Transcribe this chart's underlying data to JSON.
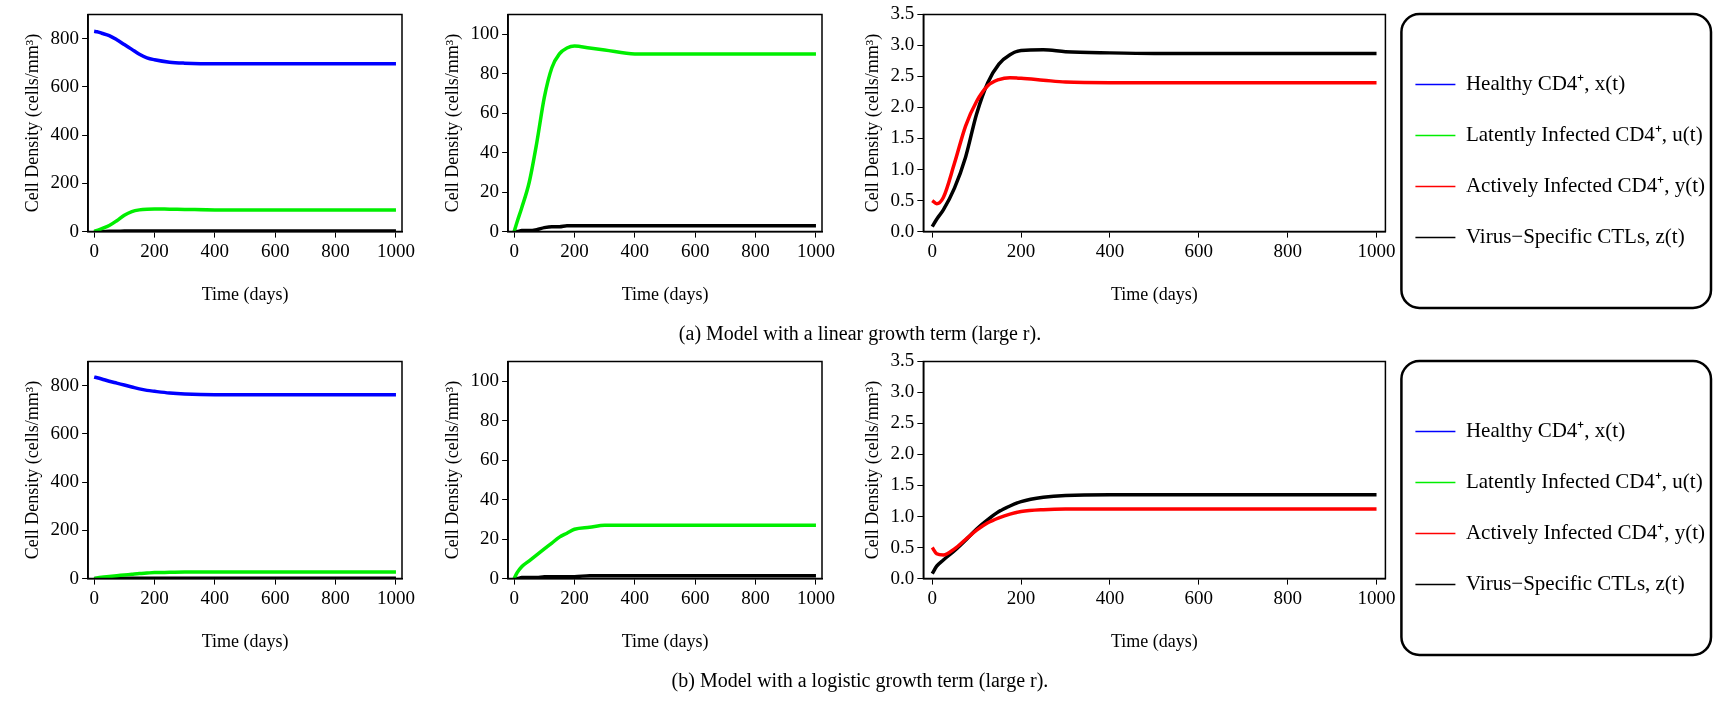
{
  "chart_data": [
    {
      "type": "line",
      "xlabel": "Time (days)",
      "ylabel": "Cell Density (cells/mm³)",
      "x": [
        0,
        10,
        25,
        50,
        75,
        100,
        125,
        150,
        175,
        200,
        250,
        300,
        400,
        500,
        600,
        800,
        1000
      ],
      "xlim": [
        -20,
        1020
      ],
      "xticks": [
        0,
        200,
        400,
        600,
        800,
        1000
      ],
      "ylim": [
        0,
        900
      ],
      "yticks": [
        0,
        200,
        400,
        600,
        800
      ],
      "grid": false,
      "marker": "none",
      "series": [
        {
          "color": "#0000ff",
          "values": [
            830,
            828,
            822,
            812,
            795,
            775,
            755,
            735,
            720,
            712,
            702,
            698,
            695,
            695,
            695,
            695,
            695
          ]
        },
        {
          "color": "#00ee00",
          "values": [
            0,
            5,
            12,
            25,
            45,
            68,
            83,
            90,
            93,
            94,
            93,
            92,
            90,
            90,
            90,
            90,
            90
          ]
        },
        {
          "color": "#ff0000",
          "values": [
            null,
            null,
            null,
            null,
            null,
            null,
            null,
            null,
            null,
            null,
            null,
            null,
            null,
            null,
            null,
            null,
            null
          ]
        },
        {
          "color": "#000000",
          "values": [
            0,
            0,
            0,
            1,
            1,
            2,
            2,
            3,
            3,
            3,
            3,
            3,
            3,
            3,
            3,
            3,
            3
          ]
        }
      ]
    },
    {
      "type": "line",
      "xlabel": "Time (days)",
      "ylabel": "Cell Density (cells/mm³)",
      "x": [
        0,
        10,
        25,
        50,
        75,
        100,
        125,
        150,
        175,
        200,
        250,
        300,
        400,
        500,
        600,
        800,
        1000
      ],
      "xlim": [
        -20,
        1020
      ],
      "xticks": [
        0,
        200,
        400,
        600,
        800,
        1000
      ],
      "ylim": [
        0,
        110
      ],
      "yticks": [
        0,
        20,
        40,
        60,
        80,
        100
      ],
      "grid": false,
      "marker": "none",
      "annotations": [
        "(a) Model with a linear growth term (large r)."
      ],
      "series": [
        {
          "color": "#00ee00",
          "values": [
            0,
            5,
            12,
            25,
            45,
            68,
            83,
            90,
            93,
            94,
            93,
            92,
            90,
            90,
            90,
            90,
            90
          ]
        },
        {
          "color": "#ff0000",
          "values": [
            null,
            null,
            null,
            null,
            null,
            null,
            null,
            null,
            null,
            null,
            null,
            null,
            null,
            null,
            null,
            null,
            null
          ]
        },
        {
          "color": "#000000",
          "values": [
            0,
            0,
            0.5,
            0.5,
            1,
            2,
            2.5,
            2.5,
            3,
            3,
            3,
            3,
            3,
            3,
            3,
            3,
            3
          ]
        }
      ]
    },
    {
      "type": "line",
      "xlabel": "Time (days)",
      "ylabel": "Cell Density (cells/mm³)",
      "x": [
        0,
        10,
        25,
        50,
        75,
        100,
        125,
        150,
        175,
        200,
        250,
        300,
        400,
        500,
        600,
        800,
        1000
      ],
      "xlim": [
        -20,
        1020
      ],
      "xticks": [
        0,
        200,
        400,
        600,
        800,
        1000
      ],
      "ylim": [
        0,
        3.5
      ],
      "yticks": [
        {
          "value": 0,
          "label": "0.0"
        },
        0.5,
        {
          "value": 1,
          "label": "1.0"
        },
        1.5,
        {
          "value": 2,
          "label": "2.0"
        },
        2.5,
        {
          "value": 3,
          "label": "3.0"
        },
        3.5
      ],
      "grid": false,
      "marker": "none",
      "legend": "right",
      "series": [
        {
          "name": "Healthy CD4⁺, x(t)",
          "color": "#0000ff",
          "values": [
            null,
            null,
            null,
            null,
            null,
            null,
            null,
            null,
            null,
            null,
            null,
            null,
            null,
            null,
            null,
            null,
            null
          ]
        },
        {
          "name": "Latently Infected CD4⁺, u(t)",
          "color": "#00ee00",
          "values": [
            null,
            null,
            null,
            null,
            null,
            null,
            null,
            null,
            null,
            null,
            null,
            null,
            null,
            null,
            null,
            null,
            null
          ]
        },
        {
          "name": "Actively Infected CD4⁺, y(t)",
          "color": "#ff0000",
          "values": [
            0.5,
            0.45,
            0.55,
            1.1,
            1.7,
            2.1,
            2.35,
            2.45,
            2.48,
            2.47,
            2.44,
            2.41,
            2.4,
            2.4,
            2.4,
            2.4,
            2.4
          ]
        },
        {
          "name": "Virus−Specific CTLs, z(t)",
          "color": "#000000",
          "values": [
            0.08,
            0.2,
            0.35,
            0.7,
            1.2,
            1.9,
            2.4,
            2.7,
            2.85,
            2.92,
            2.93,
            2.9,
            2.88,
            2.87,
            2.87,
            2.87,
            2.87
          ]
        }
      ]
    },
    {
      "type": "line",
      "xlabel": "Time (days)",
      "ylabel": "Cell Density (cells/mm³)",
      "x": [
        0,
        10,
        25,
        50,
        75,
        100,
        125,
        150,
        175,
        200,
        250,
        300,
        400,
        500,
        600,
        800,
        1000
      ],
      "xlim": [
        -20,
        1020
      ],
      "xticks": [
        0,
        200,
        400,
        600,
        800,
        1000
      ],
      "ylim": [
        0,
        900
      ],
      "yticks": [
        0,
        200,
        400,
        600,
        800
      ],
      "grid": false,
      "marker": "none",
      "series": [
        {
          "color": "#0000ff",
          "values": [
            835,
            832,
            827,
            818,
            810,
            802,
            794,
            786,
            780,
            776,
            769,
            765,
            762,
            762,
            762,
            762,
            762
          ]
        },
        {
          "color": "#00ee00",
          "values": [
            0,
            3,
            6,
            9,
            12,
            15,
            18,
            21,
            23,
            25,
            26,
            27,
            27,
            27,
            27,
            27,
            27
          ]
        },
        {
          "color": "#ff0000",
          "values": [
            null,
            null,
            null,
            null,
            null,
            null,
            null,
            null,
            null,
            null,
            null,
            null,
            null,
            null,
            null,
            null,
            null
          ]
        },
        {
          "color": "#000000",
          "values": [
            0,
            0,
            0,
            0,
            1,
            1,
            1,
            1,
            1,
            1,
            1,
            1,
            1,
            1,
            1,
            1,
            1
          ]
        }
      ]
    },
    {
      "type": "line",
      "xlabel": "Time (days)",
      "ylabel": "Cell Density (cells/mm³)",
      "x": [
        0,
        10,
        25,
        50,
        75,
        100,
        125,
        150,
        175,
        200,
        250,
        300,
        400,
        500,
        600,
        800,
        1000
      ],
      "xlim": [
        -20,
        1020
      ],
      "xticks": [
        0,
        200,
        400,
        600,
        800,
        1000
      ],
      "ylim": [
        0,
        110
      ],
      "yticks": [
        0,
        20,
        40,
        60,
        80,
        100
      ],
      "grid": false,
      "marker": "none",
      "annotations": [
        "(b) Model with a logistic growth term (large r)."
      ],
      "series": [
        {
          "color": "#00ee00",
          "values": [
            0,
            3,
            6,
            9,
            12,
            15,
            18,
            21,
            23,
            25,
            26,
            27,
            27,
            27,
            27,
            27,
            27
          ]
        },
        {
          "color": "#ff0000",
          "values": [
            null,
            null,
            null,
            null,
            null,
            null,
            null,
            null,
            null,
            null,
            null,
            null,
            null,
            null,
            null,
            null,
            null
          ]
        },
        {
          "color": "#000000",
          "values": [
            0,
            0,
            0.5,
            0.5,
            0.5,
            1,
            1,
            1,
            1,
            1,
            1.5,
            1.5,
            1.5,
            1.5,
            1.5,
            1.5,
            1.5
          ]
        }
      ]
    },
    {
      "type": "line",
      "xlabel": "Time (days)",
      "ylabel": "Cell Density (cells/mm³)",
      "x": [
        0,
        10,
        25,
        50,
        75,
        100,
        125,
        150,
        175,
        200,
        250,
        300,
        400,
        500,
        600,
        800,
        1000
      ],
      "xlim": [
        -20,
        1020
      ],
      "xticks": [
        0,
        200,
        400,
        600,
        800,
        1000
      ],
      "ylim": [
        0,
        3.5
      ],
      "yticks": [
        {
          "value": 0,
          "label": "0.0"
        },
        0.5,
        {
          "value": 1,
          "label": "1.0"
        },
        1.5,
        {
          "value": 2,
          "label": "2.0"
        },
        2.5,
        {
          "value": 3,
          "label": "3.0"
        },
        3.5
      ],
      "grid": false,
      "marker": "none",
      "legend": "right",
      "series": [
        {
          "name": "Healthy CD4⁺, x(t)",
          "color": "#0000ff",
          "values": [
            null,
            null,
            null,
            null,
            null,
            null,
            null,
            null,
            null,
            null,
            null,
            null,
            null,
            null,
            null,
            null,
            null
          ]
        },
        {
          "name": "Latently Infected CD4⁺, u(t)",
          "color": "#00ee00",
          "values": [
            null,
            null,
            null,
            null,
            null,
            null,
            null,
            null,
            null,
            null,
            null,
            null,
            null,
            null,
            null,
            null,
            null
          ]
        },
        {
          "name": "Actively Infected CD4⁺, y(t)",
          "color": "#ff0000",
          "values": [
            0.5,
            0.4,
            0.38,
            0.48,
            0.63,
            0.78,
            0.9,
            0.98,
            1.04,
            1.08,
            1.11,
            1.12,
            1.12,
            1.12,
            1.12,
            1.12,
            1.12
          ]
        },
        {
          "name": "Virus−Specific CTLs, z(t)",
          "color": "#000000",
          "values": [
            0.08,
            0.2,
            0.3,
            0.45,
            0.62,
            0.8,
            0.95,
            1.08,
            1.17,
            1.24,
            1.31,
            1.34,
            1.35,
            1.35,
            1.35,
            1.35,
            1.35
          ]
        }
      ]
    }
  ]
}
